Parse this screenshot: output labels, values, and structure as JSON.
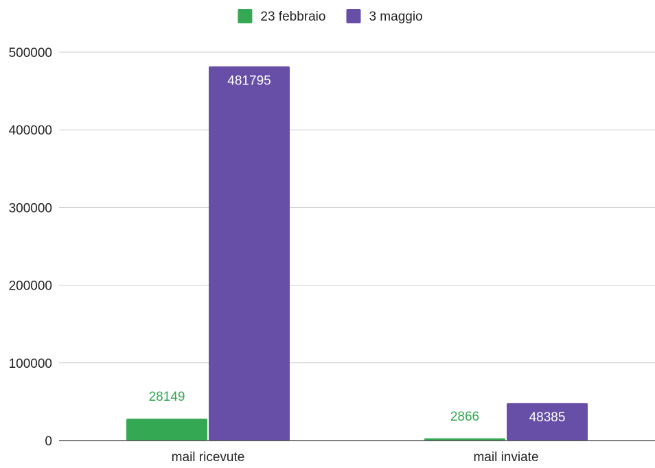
{
  "chart_data": {
    "type": "bar",
    "title": "",
    "xlabel": "",
    "ylabel": "",
    "categories": [
      "mail ricevute",
      "mail inviate"
    ],
    "series": [
      {
        "name": "23 febbraio",
        "values": [
          28149,
          2866
        ],
        "color": "#34a853"
      },
      {
        "name": "3 maggio",
        "values": [
          481795,
          48385
        ],
        "color": "#674ea7"
      }
    ],
    "ylim": [
      0,
      500000
    ],
    "yticks": [
      0,
      100000,
      200000,
      300000,
      400000,
      500000
    ],
    "ytick_labels": [
      "0",
      "100000",
      "200000",
      "300000",
      "400000",
      "500000"
    ],
    "grid": true,
    "legend_position": "top-center"
  }
}
